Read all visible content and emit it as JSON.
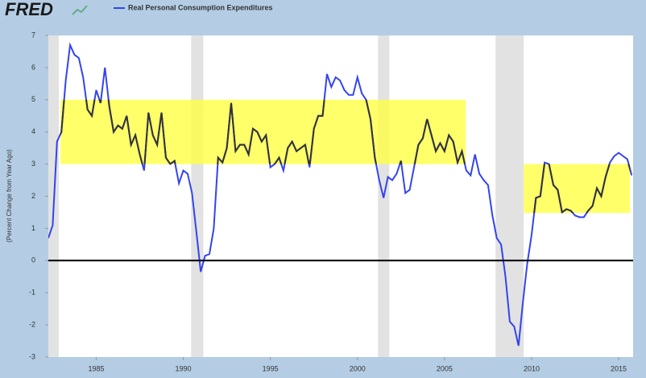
{
  "chart_data": {
    "type": "line",
    "logo": "FRED",
    "ylabel": "(Percent Change from Year Ago)",
    "x": [
      1982.25,
      1982.5,
      1982.75,
      1983,
      1983.25,
      1983.5,
      1983.75,
      1984,
      1984.25,
      1984.5,
      1984.75,
      1985,
      1985.25,
      1985.5,
      1985.75,
      1986,
      1986.25,
      1986.5,
      1986.75,
      1987,
      1987.25,
      1987.5,
      1987.75,
      1988,
      1988.25,
      1988.5,
      1988.75,
      1989,
      1989.25,
      1989.5,
      1989.75,
      1990,
      1990.25,
      1990.5,
      1990.75,
      1991,
      1991.25,
      1991.5,
      1991.75,
      1992,
      1992.25,
      1992.5,
      1992.75,
      1993,
      1993.25,
      1993.5,
      1993.75,
      1994,
      1994.25,
      1994.5,
      1994.75,
      1995,
      1995.25,
      1995.5,
      1995.75,
      1996,
      1996.25,
      1996.5,
      1996.75,
      1997,
      1997.25,
      1997.5,
      1997.75,
      1998,
      1998.25,
      1998.5,
      1998.75,
      1999,
      1999.25,
      1999.5,
      1999.75,
      2000,
      2000.25,
      2000.5,
      2000.75,
      2001,
      2001.25,
      2001.5,
      2001.75,
      2002,
      2002.25,
      2002.5,
      2002.75,
      2003,
      2003.25,
      2003.5,
      2003.75,
      2004,
      2004.25,
      2004.5,
      2004.75,
      2005,
      2005.25,
      2005.5,
      2005.75,
      2006,
      2006.25,
      2006.5,
      2006.75,
      2007,
      2007.25,
      2007.5,
      2007.75,
      2008,
      2008.25,
      2008.5,
      2008.75,
      2009,
      2009.25,
      2009.5,
      2009.75,
      2010,
      2010.25,
      2010.5,
      2010.75,
      2011,
      2011.25,
      2011.5,
      2011.75,
      2012,
      2012.25,
      2012.5,
      2012.75,
      2013,
      2013.25,
      2013.5,
      2013.75,
      2014,
      2014.25,
      2014.5,
      2014.75,
      2015,
      2015.25,
      2015.5,
      2015.75
    ],
    "series": [
      {
        "name": "Real Personal Consumption Expenditures",
        "color": "#3344ee",
        "values": [
          0.7,
          1.1,
          3.7,
          4.0,
          5.6,
          6.7,
          6.4,
          6.3,
          5.7,
          4.7,
          4.5,
          5.3,
          4.9,
          6.0,
          4.8,
          4.0,
          4.2,
          4.1,
          4.5,
          3.6,
          3.9,
          3.3,
          2.8,
          4.6,
          3.9,
          3.6,
          4.6,
          3.2,
          3.0,
          3.1,
          2.4,
          2.8,
          2.7,
          2.1,
          0.9,
          -0.35,
          0.15,
          0.2,
          1.0,
          3.2,
          3.05,
          3.5,
          4.9,
          3.4,
          3.6,
          3.6,
          3.3,
          4.1,
          4.0,
          3.7,
          3.9,
          2.9,
          3.0,
          3.2,
          2.8,
          3.5,
          3.7,
          3.4,
          3.5,
          3.6,
          2.9,
          4.1,
          4.5,
          4.5,
          5.8,
          5.4,
          5.7,
          5.6,
          5.3,
          5.15,
          5.15,
          5.7,
          5.2,
          5.0,
          4.4,
          3.2,
          2.5,
          1.95,
          2.6,
          2.5,
          2.7,
          3.1,
          2.1,
          2.2,
          2.9,
          3.6,
          3.8,
          4.4,
          3.9,
          3.4,
          3.65,
          3.4,
          3.9,
          3.7,
          3.05,
          3.4,
          2.8,
          2.65,
          3.3,
          2.7,
          2.5,
          2.35,
          1.4,
          0.7,
          0.5,
          -0.5,
          -1.9,
          -2.05,
          -2.65,
          -1.3,
          -0.1,
          0.8,
          1.95,
          2.0,
          3.05,
          3.0,
          2.35,
          2.2,
          1.5,
          1.6,
          1.55,
          1.4,
          1.35,
          1.35,
          1.55,
          1.7,
          2.25,
          2.0,
          2.6,
          3.05,
          3.25,
          3.35,
          3.25,
          3.15,
          2.65
        ]
      }
    ],
    "xlim": [
      1982.25,
      2015.83
    ],
    "xticks": [
      1985,
      1990,
      1995,
      2000,
      2005,
      2010,
      2015
    ],
    "ylim": [
      -3,
      7
    ],
    "yticks": [
      -3,
      -2,
      -1,
      0,
      1,
      2,
      3,
      4,
      5,
      6,
      7
    ],
    "recessions": [
      [
        1982.25,
        1982.85
      ],
      [
        1990.45,
        1991.15
      ],
      [
        2001.18,
        2001.83
      ],
      [
        2007.93,
        2009.55
      ]
    ],
    "highlights": [
      {
        "x": [
          1982.95,
          2006.22
        ],
        "y": [
          3,
          5
        ],
        "color": "#ffff44"
      },
      {
        "x": [
          2009.55,
          2015.65
        ],
        "y": [
          1.48,
          3
        ],
        "color": "#ffff44"
      }
    ],
    "highlight_line_color": "#333333",
    "zero_line": 0
  }
}
